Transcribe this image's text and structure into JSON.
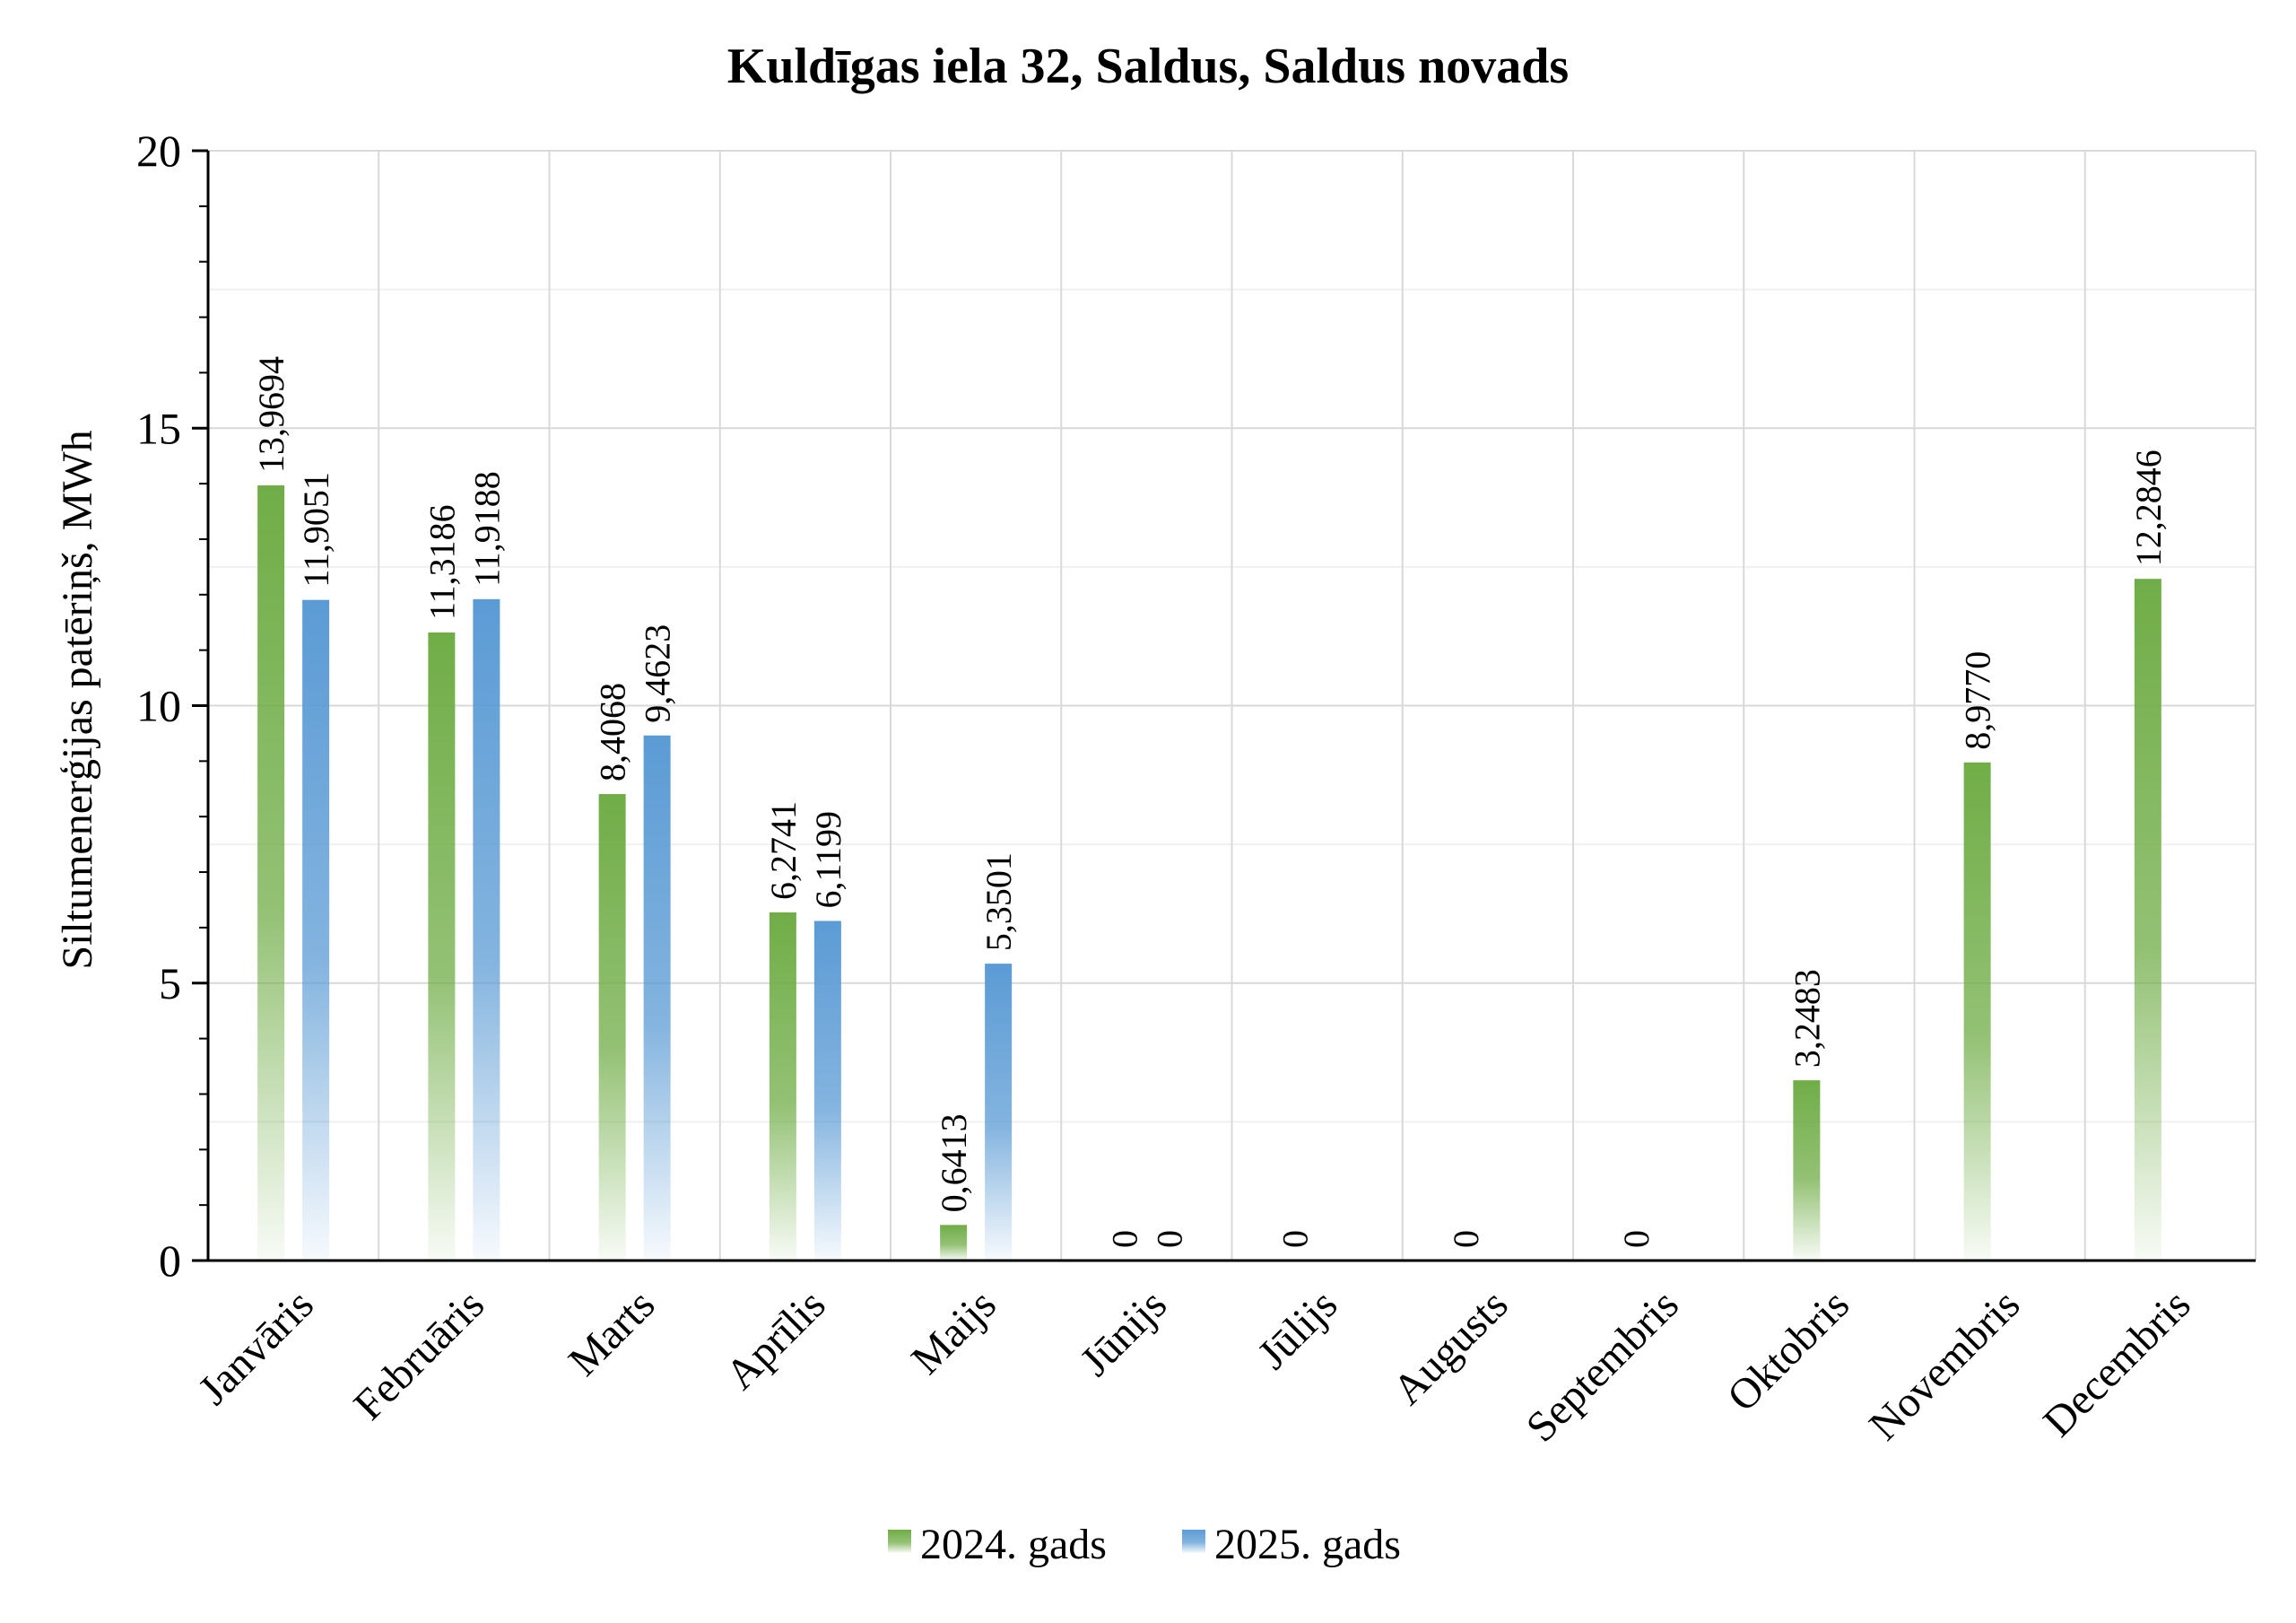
{
  "chart_data": {
    "type": "bar",
    "title": "Kuldīgas iela 32, Saldus, Saldus novads",
    "ylabel": "Siltumenerģijas patēriņš, MWh",
    "xlabel": "",
    "ylim": [
      0,
      20
    ],
    "yticks": [
      "0",
      "5",
      "10",
      "15",
      "20"
    ],
    "categories": [
      "Janvāris",
      "Februāris",
      "Marts",
      "Aprīlis",
      "Maijs",
      "Jūnijs",
      "Jūlijs",
      "Augusts",
      "Septembris",
      "Oktobris",
      "Novembris",
      "Decembris"
    ],
    "series": [
      {
        "name": "2024. gads",
        "color": "#70ad47",
        "values": [
          13.9694,
          11.3186,
          8.4068,
          6.2741,
          0.6413,
          0,
          0,
          0,
          0,
          3.2483,
          8.977,
          12.2846
        ],
        "labels": [
          "13,9694",
          "11,3186",
          "8,4068",
          "6,2741",
          "0,6413",
          "0",
          "0",
          "0",
          "0",
          "3,2483",
          "8,9770",
          "12,2846"
        ]
      },
      {
        "name": "2025. gads",
        "color": "#5b9bd5",
        "values": [
          11.9051,
          11.9188,
          9.4623,
          6.1199,
          5.3501,
          0,
          null,
          null,
          null,
          null,
          null,
          null
        ],
        "labels": [
          "11,9051",
          "11,9188",
          "9,4623",
          "6,1199",
          "5,3501",
          "0",
          "",
          "",
          "",
          "",
          "",
          ""
        ]
      }
    ],
    "grid": true,
    "legend_position": "bottom"
  }
}
